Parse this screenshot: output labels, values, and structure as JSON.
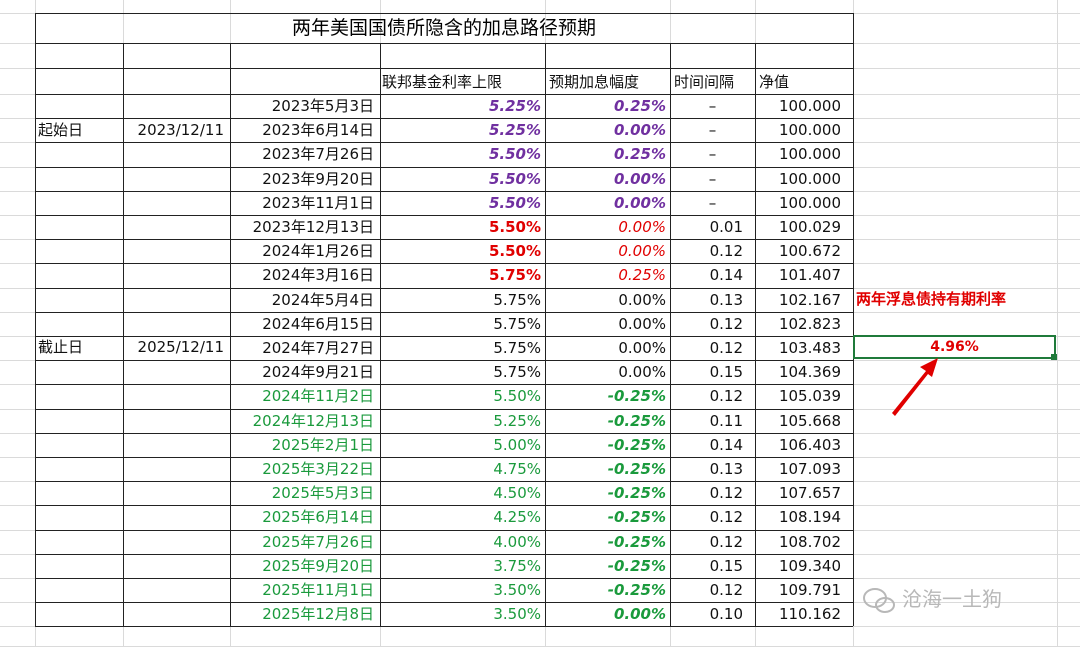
{
  "title": "两年美国国债所隐含的加息路径预期",
  "headers": {
    "rate": "联邦基金利率上限",
    "hike": "预期加息幅度",
    "interval": "时间间隔",
    "nav": "净值"
  },
  "start": {
    "label": "起始日",
    "date": "2023/12/11"
  },
  "end": {
    "label": "截止日",
    "date": "2025/12/11"
  },
  "holding": {
    "label": "两年浮息债持有期利率",
    "value": "4.96%"
  },
  "watermark": "沧海一土狗",
  "colors": {
    "purple": "#7030a0",
    "red": "#e00000",
    "green": "#1a9a3c",
    "black": "#111111"
  },
  "rows": [
    {
      "date": "2023年5月3日",
      "rate": "5.25%",
      "hike": "0.25%",
      "interval": "–",
      "nav": "100.000",
      "style": "purple"
    },
    {
      "date": "2023年6月14日",
      "rate": "5.25%",
      "hike": "0.00%",
      "interval": "–",
      "nav": "100.000",
      "style": "purple"
    },
    {
      "date": "2023年7月26日",
      "rate": "5.50%",
      "hike": "0.25%",
      "interval": "–",
      "nav": "100.000",
      "style": "purple"
    },
    {
      "date": "2023年9月20日",
      "rate": "5.50%",
      "hike": "0.00%",
      "interval": "–",
      "nav": "100.000",
      "style": "purple"
    },
    {
      "date": "2023年11月1日",
      "rate": "5.50%",
      "hike": "0.00%",
      "interval": "–",
      "nav": "100.000",
      "style": "purple"
    },
    {
      "date": "2023年12月13日",
      "rate": "5.50%",
      "hike": "0.00%",
      "interval": "0.01",
      "nav": "100.029",
      "style": "red"
    },
    {
      "date": "2024年1月26日",
      "rate": "5.50%",
      "hike": "0.00%",
      "interval": "0.12",
      "nav": "100.672",
      "style": "red"
    },
    {
      "date": "2024年3月16日",
      "rate": "5.75%",
      "hike": "0.25%",
      "interval": "0.14",
      "nav": "101.407",
      "style": "red"
    },
    {
      "date": "2024年5月4日",
      "rate": "5.75%",
      "hike": "0.00%",
      "interval": "0.13",
      "nav": "102.167",
      "style": "black"
    },
    {
      "date": "2024年6月15日",
      "rate": "5.75%",
      "hike": "0.00%",
      "interval": "0.12",
      "nav": "102.823",
      "style": "black"
    },
    {
      "date": "2024年7月27日",
      "rate": "5.75%",
      "hike": "0.00%",
      "interval": "0.12",
      "nav": "103.483",
      "style": "black"
    },
    {
      "date": "2024年9月21日",
      "rate": "5.75%",
      "hike": "0.00%",
      "interval": "0.15",
      "nav": "104.369",
      "style": "black"
    },
    {
      "date": "2024年11月2日",
      "rate": "5.50%",
      "hike": "-0.25%",
      "interval": "0.12",
      "nav": "105.039",
      "style": "green"
    },
    {
      "date": "2024年12月13日",
      "rate": "5.25%",
      "hike": "-0.25%",
      "interval": "0.11",
      "nav": "105.668",
      "style": "green"
    },
    {
      "date": "2025年2月1日",
      "rate": "5.00%",
      "hike": "-0.25%",
      "interval": "0.14",
      "nav": "106.403",
      "style": "green"
    },
    {
      "date": "2025年3月22日",
      "rate": "4.75%",
      "hike": "-0.25%",
      "interval": "0.13",
      "nav": "107.093",
      "style": "green"
    },
    {
      "date": "2025年5月3日",
      "rate": "4.50%",
      "hike": "-0.25%",
      "interval": "0.12",
      "nav": "107.657",
      "style": "green"
    },
    {
      "date": "2025年6月14日",
      "rate": "4.25%",
      "hike": "-0.25%",
      "interval": "0.12",
      "nav": "108.194",
      "style": "green"
    },
    {
      "date": "2025年7月26日",
      "rate": "4.00%",
      "hike": "-0.25%",
      "interval": "0.12",
      "nav": "108.702",
      "style": "green"
    },
    {
      "date": "2025年9月20日",
      "rate": "3.75%",
      "hike": "-0.25%",
      "interval": "0.15",
      "nav": "109.340",
      "style": "green"
    },
    {
      "date": "2025年11月1日",
      "rate": "3.50%",
      "hike": "-0.25%",
      "interval": "0.12",
      "nav": "109.791",
      "style": "green"
    },
    {
      "date": "2025年12月8日",
      "rate": "3.50%",
      "hike": "0.00%",
      "interval": "0.10",
      "nav": "110.162",
      "style": "green"
    }
  ]
}
